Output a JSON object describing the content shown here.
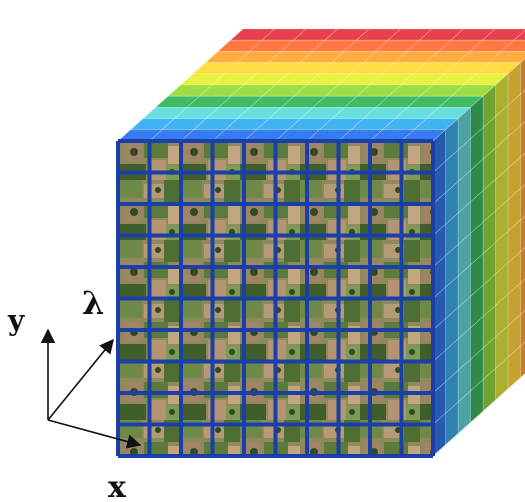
{
  "figure": {
    "axes": {
      "y_label": "y",
      "lambda_label": "λ",
      "x_label": "x"
    },
    "grid": {
      "front_rows": 10,
      "front_cols": 10,
      "spectral_bands": 10
    },
    "band_colors": [
      "#2f6fd6",
      "#3aa0d8",
      "#5cc7c9",
      "#39a85a",
      "#8cc63f",
      "#cfd83a",
      "#f2c43a",
      "#f29a38",
      "#e66a3a",
      "#cf3a45"
    ],
    "front_face_texture": "satellite-farmland-image",
    "front_grid_color": "#1a3fa8",
    "arrow_color": "#111111"
  }
}
